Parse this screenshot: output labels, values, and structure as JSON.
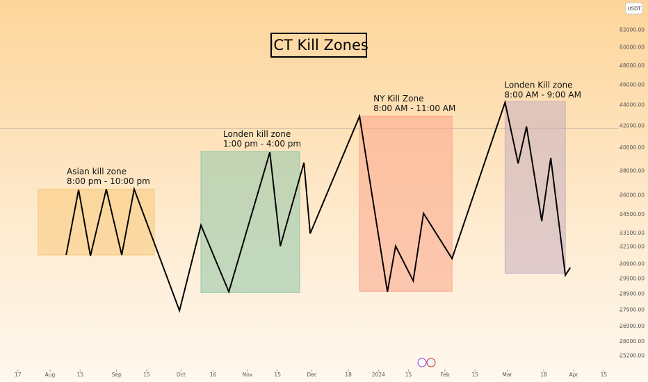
{
  "chart_data": {
    "type": "line",
    "title": "ICT Kill Zones",
    "currency": "USDT",
    "log_scale": true,
    "color": "#000000",
    "x": [
      38.5,
      44.3,
      49.8,
      57.2,
      64.4,
      70.2,
      91.3,
      101.3,
      114.3,
      133.4,
      138.3,
      149.3,
      152.2,
      175.2,
      188.2,
      192.0,
      200.2,
      205.0,
      218.3,
      243.0,
      249.1,
      253.0,
      260.1,
      264.3,
      271.1,
      273.4
    ],
    "values": [
      31540,
      36460,
      31480,
      36510,
      31540,
      36510,
      27870,
      33700,
      29060,
      39630,
      32170,
      38720,
      33080,
      42940,
      29060,
      32170,
      29780,
      34600,
      31290,
      44280,
      38660,
      41960,
      34010,
      39140,
      30150,
      30670
    ],
    "xlim": [
      7.67,
      296
    ],
    "xticks": [
      {
        "value": 16,
        "label": "17"
      },
      {
        "value": 31,
        "label": "Aug"
      },
      {
        "value": 45,
        "label": "15"
      },
      {
        "value": 62,
        "label": "Sep"
      },
      {
        "value": 76,
        "label": "15"
      },
      {
        "value": 92,
        "label": "Oct"
      },
      {
        "value": 107,
        "label": "16"
      },
      {
        "value": 123,
        "label": "Nov"
      },
      {
        "value": 137,
        "label": "15"
      },
      {
        "value": 153,
        "label": "Dec"
      },
      {
        "value": 170,
        "label": "18"
      },
      {
        "value": 184,
        "label": "2024"
      },
      {
        "value": 198,
        "label": "15"
      },
      {
        "value": 215,
        "label": "Feb"
      },
      {
        "value": 229,
        "label": "15"
      },
      {
        "value": 244,
        "label": "Mar"
      },
      {
        "value": 261,
        "label": "18"
      },
      {
        "value": 275,
        "label": "Apr"
      },
      {
        "value": 289,
        "label": "15"
      }
    ],
    "ylim": [
      24450,
      55600
    ],
    "yticks": [
      {
        "value": 52000,
        "label": "52000.00"
      },
      {
        "value": 50000,
        "label": "50000.00"
      },
      {
        "value": 48000,
        "label": "48000.00"
      },
      {
        "value": 46000,
        "label": "46000.00"
      },
      {
        "value": 44000,
        "label": "44000.00"
      },
      {
        "value": 42000,
        "label": "42000.00"
      },
      {
        "value": 40000,
        "label": "40000.00"
      },
      {
        "value": 38000,
        "label": "38000.00"
      },
      {
        "value": 36000,
        "label": "36000.00"
      },
      {
        "value": 34500,
        "label": "34500.00"
      },
      {
        "value": 33100,
        "label": "33100.00"
      },
      {
        "value": 32100,
        "label": "32100.00"
      },
      {
        "value": 30900,
        "label": "30900.00"
      },
      {
        "value": 29900,
        "label": "29900.00"
      },
      {
        "value": 28900,
        "label": "28900.00"
      },
      {
        "value": 27900,
        "label": "27900.00"
      },
      {
        "value": 26900,
        "label": "26900.00"
      },
      {
        "value": 26000,
        "label": "26000.00"
      },
      {
        "value": 25200,
        "label": "25200.00"
      }
    ],
    "hline": 41800,
    "zones": [
      {
        "label": [
          "Asian kill zone",
          "8:00 pm - 10:00 pm"
        ],
        "x": [
          25.5,
          79.6
        ],
        "y": [
          31540,
          36510
        ],
        "color": "#f7c97a"
      },
      {
        "label": [
          "Londen kill zone",
          "1:00 pm - 4:00 pm"
        ],
        "x": [
          101.3,
          147.3
        ],
        "y": [
          29010,
          39690
        ],
        "color": "#8fc7a8"
      },
      {
        "label": [
          "NY Kill Zone",
          "8:00 AM - 11:00 AM"
        ],
        "x": [
          175.2,
          218.3
        ],
        "y": [
          29100,
          42940
        ],
        "color": "#f9a58a"
      },
      {
        "label": [
          "Londen Kill zone",
          "8:00 AM - 9:00 AM"
        ],
        "x": [
          243.0,
          271.1
        ],
        "y": [
          30290,
          44360
        ],
        "color": "#c7aec0"
      }
    ]
  }
}
